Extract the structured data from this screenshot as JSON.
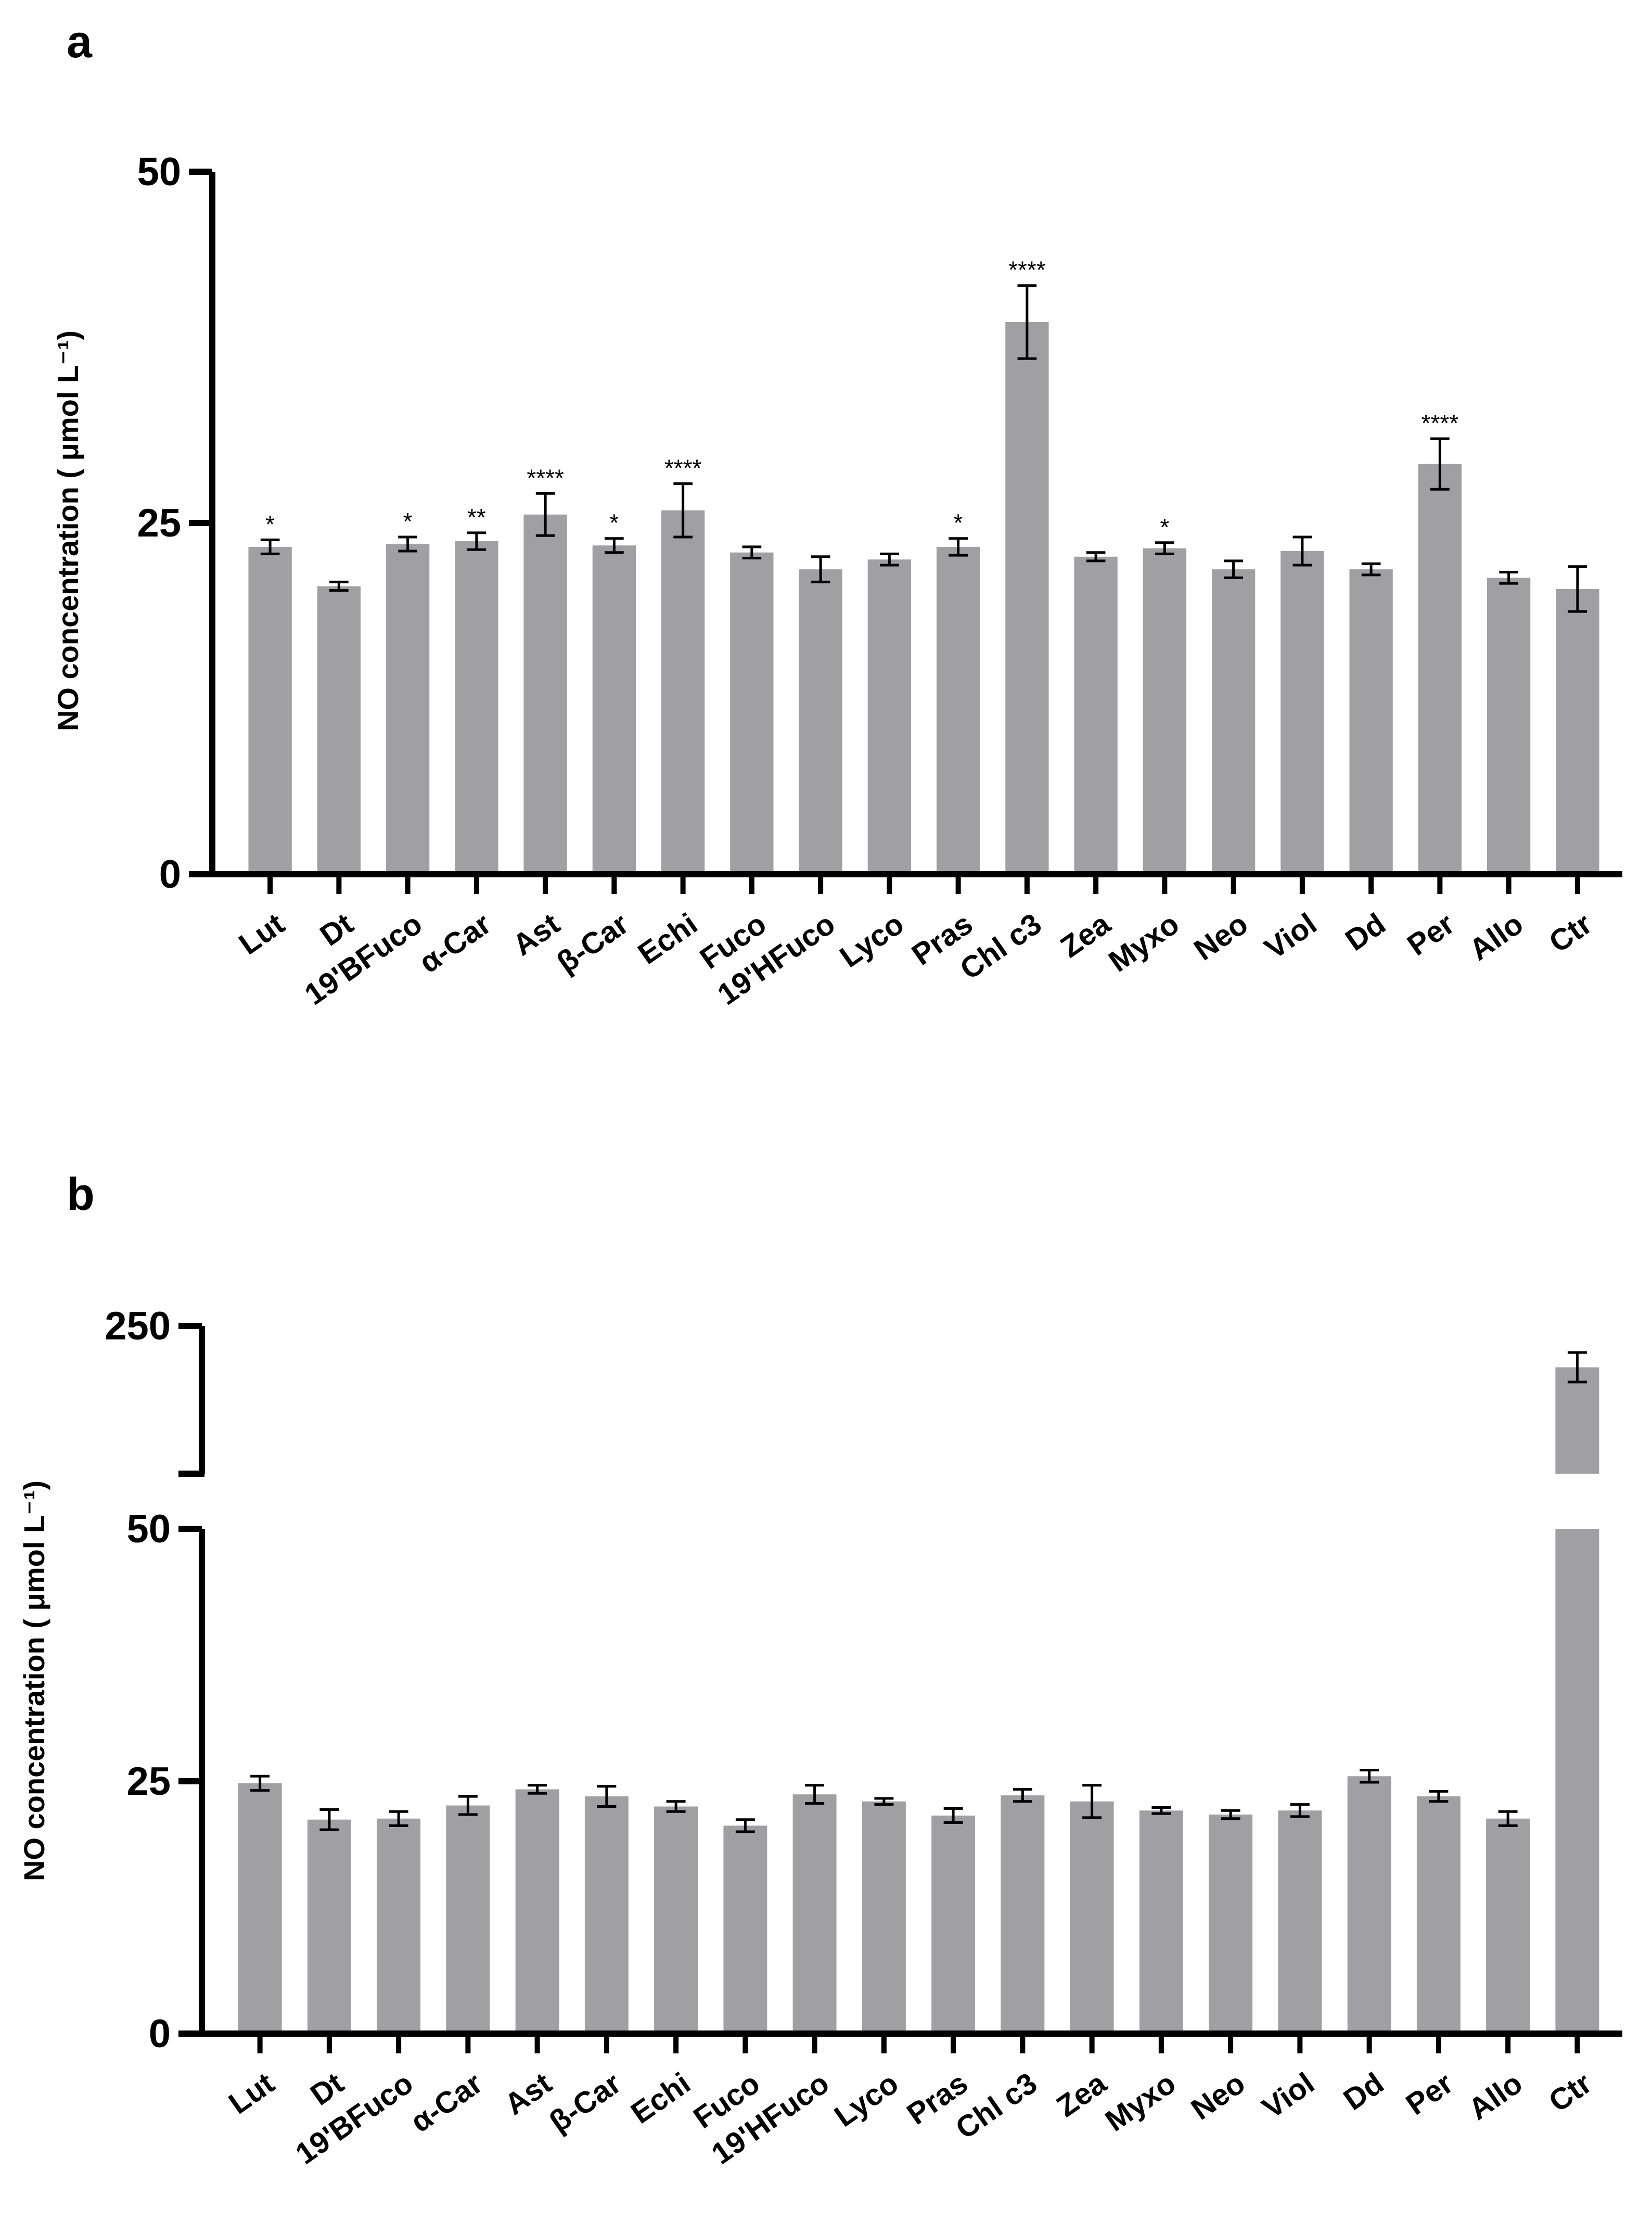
{
  "figure": {
    "colors": {
      "bar": "#a0a0a3",
      "axis": "#000000",
      "text": "#000000"
    }
  },
  "chart_data": [
    {
      "panel": "a",
      "type": "bar",
      "ylabel": "NO concentration ( μmol L⁻¹)",
      "ylim": [
        0,
        50
      ],
      "yticks": [
        0,
        25,
        50
      ],
      "categories": [
        "Lut",
        "Dt",
        "19'BFuco",
        "α-Car",
        "Ast",
        "β-Car",
        "Echi",
        "Fuco",
        "19'HFuco",
        "Lyco",
        "Pras",
        "Chl c3",
        "Zea",
        "Myxo",
        "Neo",
        "Viol",
        "Dd",
        "Per",
        "Allo",
        "Ctr"
      ],
      "values": [
        23.3,
        20.5,
        23.5,
        23.7,
        25.6,
        23.4,
        25.9,
        22.9,
        21.7,
        22.4,
        23.3,
        39.3,
        22.6,
        23.2,
        21.7,
        23.0,
        21.7,
        29.2,
        21.1,
        20.3
      ],
      "errors": [
        0.5,
        0.3,
        0.5,
        0.6,
        1.5,
        0.5,
        1.9,
        0.4,
        0.9,
        0.4,
        0.6,
        2.6,
        0.3,
        0.4,
        0.6,
        1.0,
        0.4,
        1.8,
        0.4,
        1.6
      ],
      "annotations": [
        "*",
        "",
        "*",
        "**",
        "****",
        "*",
        "****",
        "",
        "",
        "",
        "*",
        "****",
        "",
        "*",
        "",
        "",
        "",
        "****",
        "",
        ""
      ]
    },
    {
      "panel": "b",
      "type": "bar",
      "ylabel": "NO concentration ( μmol L⁻¹)",
      "ylim": [
        0,
        250
      ],
      "axis_break": [
        50,
        225
      ],
      "yticks": [
        0,
        25,
        50,
        250
      ],
      "categories": [
        "Lut",
        "Dt",
        "19'BFuco",
        "α-Car",
        "Ast",
        "β-Car",
        "Echi",
        "Fuco",
        "19'HFuco",
        "Lyco",
        "Pras",
        "Chl c3",
        "Zea",
        "Myxo",
        "Neo",
        "Viol",
        "Dd",
        "Per",
        "Allo",
        "Ctr"
      ],
      "values": [
        24.8,
        21.2,
        21.3,
        22.6,
        24.2,
        23.5,
        22.5,
        20.6,
        23.7,
        23.0,
        21.6,
        23.6,
        23.0,
        22.1,
        21.7,
        22.1,
        25.5,
        23.5,
        21.3,
        243
      ],
      "errors": [
        0.7,
        1.0,
        0.7,
        0.9,
        0.4,
        1.0,
        0.5,
        0.6,
        0.9,
        0.3,
        0.7,
        0.6,
        1.6,
        0.3,
        0.4,
        0.6,
        0.6,
        0.5,
        0.7,
        2.5
      ],
      "annotations": []
    }
  ]
}
